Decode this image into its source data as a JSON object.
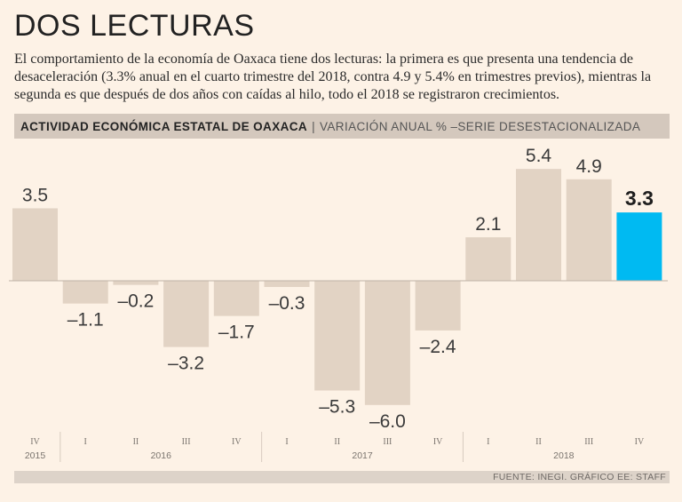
{
  "headline": "DOS LECTURAS",
  "subtitle": "El comportamiento de la economía de Oaxaca tiene dos lecturas: la primera es que presenta una tendencia de desaceleración (3.3% anual en el cuarto trimestre del 2018, contra 4.9 y 5.4% en trimestres previos), mientras la segunda es que después de dos años con caídas al hilo, todo el 2018 se registraron crecimientos.",
  "chart_header": {
    "title": "ACTIVIDAD ECONÓMICA ESTATAL DE OAXACA",
    "separator": "|",
    "subtitle": "VARIACIÓN ANUAL % –SERIE DESESTACIONALIZADA"
  },
  "source": "FUENTE: INEGI. GRÁFICO EE: STAFF",
  "colors": {
    "bar": "#e2d3c4",
    "highlight": "#00baf2",
    "background": "#fdf2e6"
  },
  "chart_data": {
    "type": "bar",
    "title": "ACTIVIDAD ECONÓMICA ESTATAL DE OAXACA",
    "subtitle": "VARIACIÓN ANUAL % –SERIE DESESTACIONALIZADA",
    "xlabel": "",
    "ylabel": "",
    "ylim": [
      -6.5,
      6.0
    ],
    "grid": false,
    "categories": [
      "IV",
      "I",
      "II",
      "III",
      "IV",
      "I",
      "II",
      "III",
      "IV",
      "I",
      "II",
      "III",
      "IV"
    ],
    "labels": [
      "3.5",
      "–1.1",
      "–0.2",
      "–3.2",
      "–1.7",
      "–0.3",
      "–5.3",
      "–6.0",
      "–2.4",
      "2.1",
      "5.4",
      "4.9",
      "3.3"
    ],
    "values": [
      3.5,
      -1.1,
      -0.2,
      -3.2,
      -1.7,
      -0.3,
      -5.3,
      -6.0,
      -2.4,
      2.1,
      5.4,
      4.9,
      3.3
    ],
    "highlight_index": 12,
    "years": [
      {
        "label": "2015",
        "start": 0,
        "end": 0
      },
      {
        "label": "2016",
        "start": 1,
        "end": 4
      },
      {
        "label": "2017",
        "start": 5,
        "end": 8
      },
      {
        "label": "2018",
        "start": 9,
        "end": 12
      }
    ]
  }
}
